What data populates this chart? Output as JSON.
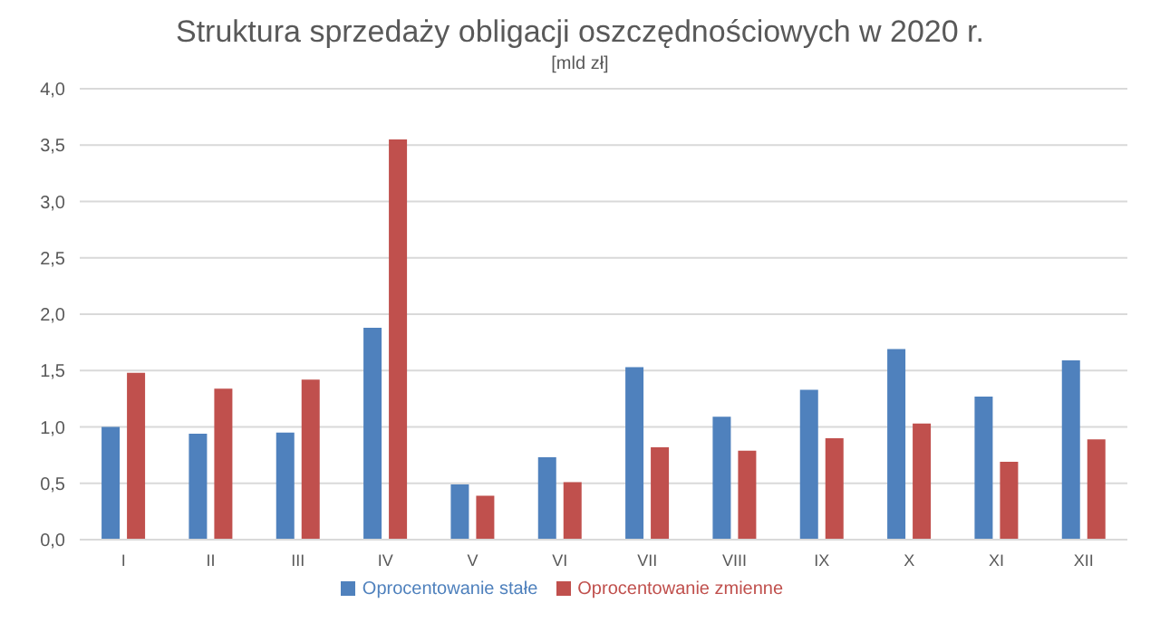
{
  "chart_data": {
    "type": "bar",
    "title": "Struktura sprzedaży obligacji oszczędnościowych w 2020 r.",
    "subtitle": "[mld zł]",
    "categories": [
      "I",
      "II",
      "III",
      "IV",
      "V",
      "VI",
      "VII",
      "VIII",
      "IX",
      "X",
      "XI",
      "XII"
    ],
    "series": [
      {
        "name": "Oprocentowanie stałe",
        "color": "#4f81bd",
        "values": [
          1.0,
          0.94,
          0.95,
          1.88,
          0.49,
          0.73,
          1.53,
          1.09,
          1.33,
          1.69,
          1.27,
          1.59
        ]
      },
      {
        "name": "Oprocentowanie zmienne",
        "color": "#c0504d",
        "values": [
          1.48,
          1.34,
          1.42,
          3.55,
          0.39,
          0.51,
          0.82,
          0.79,
          0.9,
          1.03,
          0.69,
          0.89
        ]
      }
    ],
    "ylim": [
      0,
      4
    ],
    "yticks": [
      {
        "value": 0,
        "label": "0,0"
      },
      {
        "value": 0.5,
        "label": "0,5"
      },
      {
        "value": 1,
        "label": "1,0"
      },
      {
        "value": 1.5,
        "label": "1,5"
      },
      {
        "value": 2,
        "label": "2,0"
      },
      {
        "value": 2.5,
        "label": "2,5"
      },
      {
        "value": 3,
        "label": "3,0"
      },
      {
        "value": 3.5,
        "label": "3,5"
      },
      {
        "value": 4,
        "label": "4,0"
      }
    ],
    "grid": "y",
    "legend": "bottom"
  }
}
